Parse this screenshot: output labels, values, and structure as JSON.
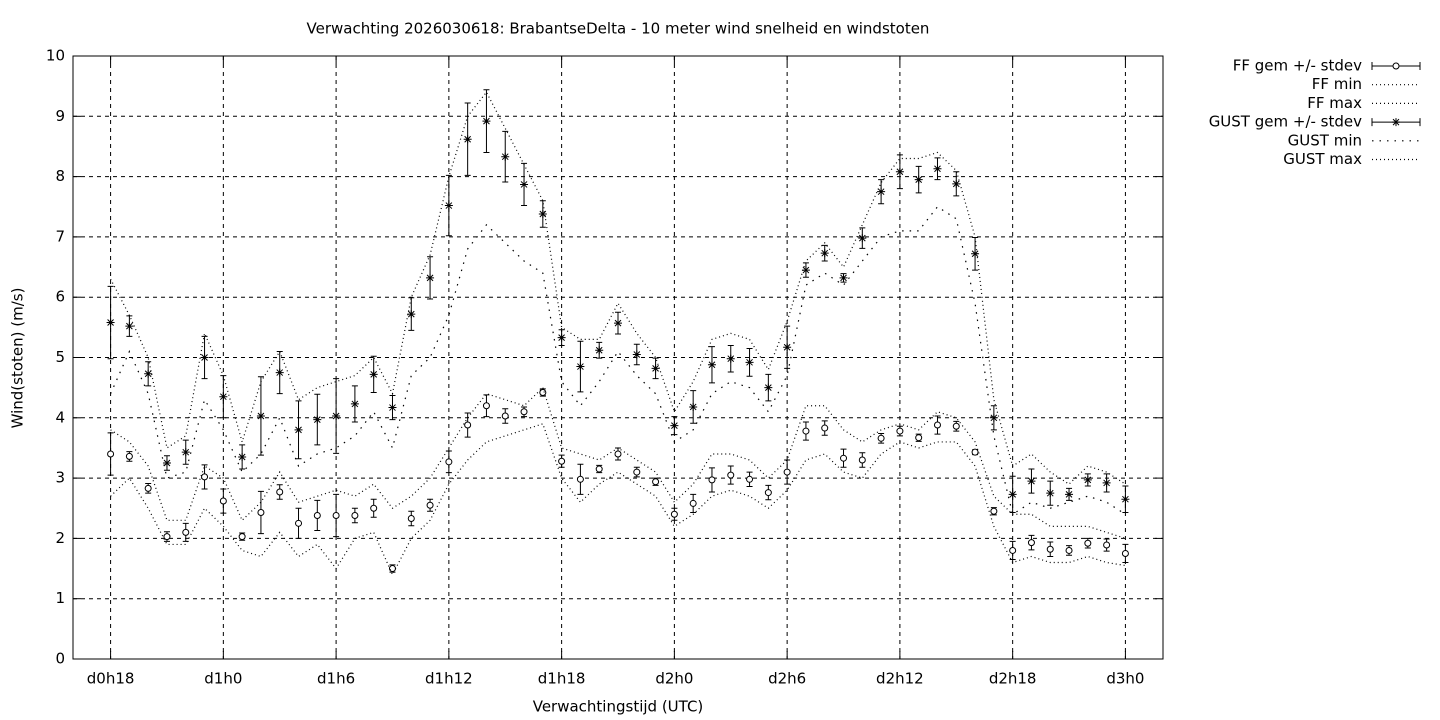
{
  "chart_data": {
    "type": "line",
    "title": "Verwachting 2026030618: BrabantseDelta - 10 meter wind snelheid en windstoten",
    "xlabel": "Verwachtingstijd (UTC)",
    "ylabel": "Wind(stoten) (m/s)",
    "x": [
      18,
      19,
      20,
      21,
      22,
      23,
      24,
      25,
      26,
      27,
      28,
      29,
      30,
      31,
      32,
      33,
      34,
      35,
      36,
      37,
      38,
      39,
      40,
      41,
      42,
      43,
      44,
      45,
      46,
      47,
      48,
      49,
      50,
      51,
      52,
      53,
      54,
      55,
      56,
      57,
      58,
      59,
      60,
      61,
      62,
      63,
      64,
      65,
      66,
      67,
      68,
      69,
      70,
      71,
      72
    ],
    "xlim": [
      16,
      74
    ],
    "xticks": [
      {
        "value": 18,
        "label": "d0h18"
      },
      {
        "value": 24,
        "label": "d1h0"
      },
      {
        "value": 30,
        "label": "d1h6"
      },
      {
        "value": 36,
        "label": "d1h12"
      },
      {
        "value": 42,
        "label": "d1h18"
      },
      {
        "value": 48,
        "label": "d2h0"
      },
      {
        "value": 54,
        "label": "d2h6"
      },
      {
        "value": 60,
        "label": "d2h12"
      },
      {
        "value": 66,
        "label": "d2h18"
      },
      {
        "value": 72,
        "label": "d3h0"
      }
    ],
    "ylim": [
      0,
      10
    ],
    "yticks": [
      0,
      1,
      2,
      3,
      4,
      5,
      6,
      7,
      8,
      9,
      10
    ],
    "grid": true,
    "legend": "outside-right",
    "series": [
      {
        "name": "FF gem +/- stdev",
        "color": "#000000",
        "style": "errorbars",
        "marker": "circle",
        "values": [
          3.4,
          3.36,
          2.83,
          2.03,
          2.1,
          3.02,
          2.62,
          2.03,
          2.43,
          2.77,
          2.25,
          2.38,
          2.38,
          2.38,
          2.5,
          1.5,
          2.33,
          2.55,
          3.27,
          3.88,
          4.2,
          4.03,
          4.1,
          4.42,
          3.28,
          2.98,
          3.15,
          3.4,
          3.1,
          2.94,
          2.4,
          2.58,
          2.97,
          3.05,
          2.98,
          2.76,
          3.1,
          3.78,
          3.83,
          3.33,
          3.3,
          3.66,
          3.78,
          3.67,
          3.88,
          3.86,
          3.43,
          2.45,
          1.8,
          1.93,
          1.82,
          1.8,
          1.92,
          1.89,
          1.75
        ],
        "errors": [
          0.35,
          0.08,
          0.08,
          0.08,
          0.15,
          0.2,
          0.2,
          0.06,
          0.35,
          0.12,
          0.25,
          0.25,
          0.35,
          0.12,
          0.15,
          0.06,
          0.12,
          0.1,
          0.18,
          0.2,
          0.18,
          0.12,
          0.08,
          0.06,
          0.1,
          0.25,
          0.06,
          0.1,
          0.08,
          0.06,
          0.1,
          0.15,
          0.2,
          0.15,
          0.12,
          0.12,
          0.2,
          0.15,
          0.12,
          0.15,
          0.12,
          0.08,
          0.08,
          0.06,
          0.15,
          0.08,
          0.04,
          0.06,
          0.15,
          0.12,
          0.12,
          0.08,
          0.08,
          0.1,
          0.15
        ]
      },
      {
        "name": "FF min",
        "color": "#000000",
        "style": "dotted",
        "values": [
          2.7,
          3.0,
          2.5,
          1.9,
          1.9,
          2.5,
          2.2,
          1.8,
          1.7,
          2.1,
          1.7,
          1.9,
          1.5,
          2.0,
          2.1,
          1.4,
          2.0,
          2.3,
          2.9,
          3.3,
          3.6,
          3.7,
          3.8,
          3.9,
          3.0,
          2.6,
          2.9,
          3.1,
          2.9,
          2.7,
          2.2,
          2.4,
          2.7,
          2.8,
          2.7,
          2.5,
          2.8,
          3.3,
          3.4,
          3.1,
          3.0,
          3.4,
          3.6,
          3.5,
          3.6,
          3.6,
          3.2,
          2.2,
          1.6,
          1.7,
          1.6,
          1.6,
          1.7,
          1.6,
          1.55
        ]
      },
      {
        "name": "FF max",
        "color": "#000000",
        "style": "dotted",
        "values": [
          3.8,
          3.6,
          3.2,
          2.3,
          2.3,
          3.2,
          3.0,
          2.3,
          2.6,
          3.1,
          2.6,
          2.7,
          2.8,
          2.7,
          2.9,
          2.5,
          2.7,
          3.0,
          3.5,
          4.0,
          4.4,
          4.3,
          4.2,
          4.5,
          3.5,
          3.4,
          3.3,
          3.5,
          3.3,
          3.1,
          2.6,
          2.9,
          3.4,
          3.4,
          3.3,
          3.0,
          3.3,
          4.2,
          4.2,
          3.8,
          3.6,
          3.8,
          3.9,
          3.8,
          4.1,
          4.0,
          3.6,
          2.7,
          2.4,
          2.4,
          2.2,
          2.2,
          2.2,
          2.1,
          2.0
        ]
      },
      {
        "name": "GUST gem +/- stdev",
        "color": "#000000",
        "style": "errorbars",
        "marker": "star",
        "values": [
          5.58,
          5.52,
          4.73,
          3.25,
          3.43,
          5.0,
          4.35,
          3.35,
          4.03,
          4.75,
          3.8,
          3.97,
          4.03,
          4.23,
          4.72,
          4.17,
          5.72,
          6.32,
          7.52,
          8.62,
          8.92,
          8.33,
          7.87,
          7.38,
          5.33,
          4.85,
          5.12,
          5.57,
          5.05,
          4.82,
          3.87,
          4.18,
          4.88,
          4.98,
          4.92,
          4.5,
          5.17,
          6.45,
          6.73,
          6.32,
          6.98,
          7.75,
          8.08,
          7.95,
          8.13,
          7.88,
          6.72,
          4.0,
          2.73,
          2.95,
          2.75,
          2.73,
          2.97,
          2.92,
          2.65
        ],
        "errors": [
          0.6,
          0.17,
          0.2,
          0.12,
          0.2,
          0.35,
          0.35,
          0.2,
          0.65,
          0.35,
          0.48,
          0.42,
          0.62,
          0.3,
          0.3,
          0.2,
          0.27,
          0.35,
          0.5,
          0.6,
          0.52,
          0.42,
          0.35,
          0.22,
          0.13,
          0.42,
          0.13,
          0.18,
          0.17,
          0.17,
          0.15,
          0.27,
          0.3,
          0.22,
          0.23,
          0.22,
          0.35,
          0.12,
          0.13,
          0.07,
          0.17,
          0.2,
          0.28,
          0.22,
          0.18,
          0.2,
          0.27,
          0.2,
          0.3,
          0.2,
          0.2,
          0.1,
          0.1,
          0.15,
          0.22
        ]
      },
      {
        "name": "GUST min",
        "color": "#000000",
        "style": "sparse-dotted",
        "values": [
          4.4,
          5.1,
          4.4,
          3.0,
          3.1,
          4.3,
          3.8,
          3.1,
          3.4,
          4.0,
          3.2,
          3.4,
          3.5,
          3.7,
          4.1,
          3.5,
          4.7,
          5.0,
          5.7,
          6.8,
          7.2,
          6.9,
          6.6,
          6.4,
          4.6,
          4.2,
          4.6,
          5.1,
          4.7,
          4.4,
          3.6,
          3.8,
          4.4,
          4.6,
          4.5,
          4.1,
          4.7,
          6.2,
          6.4,
          6.2,
          6.6,
          7.0,
          7.1,
          7.1,
          7.5,
          7.3,
          5.9,
          3.7,
          2.4,
          2.6,
          2.5,
          2.6,
          2.7,
          2.6,
          2.4
        ]
      },
      {
        "name": "GUST max",
        "color": "#000000",
        "style": "dotted",
        "values": [
          6.3,
          5.7,
          5.0,
          3.5,
          3.7,
          5.4,
          4.7,
          3.6,
          4.6,
          5.1,
          4.3,
          4.5,
          4.6,
          4.7,
          5.0,
          4.4,
          6.0,
          6.7,
          8.0,
          9.0,
          9.4,
          8.8,
          8.2,
          7.6,
          5.5,
          5.3,
          5.3,
          5.9,
          5.4,
          5.0,
          4.1,
          4.6,
          5.3,
          5.4,
          5.3,
          4.8,
          5.6,
          6.6,
          6.9,
          6.5,
          7.2,
          7.9,
          8.3,
          8.3,
          8.4,
          8.1,
          7.0,
          4.3,
          3.2,
          3.4,
          3.1,
          2.9,
          3.2,
          3.1,
          2.9
        ]
      }
    ]
  }
}
